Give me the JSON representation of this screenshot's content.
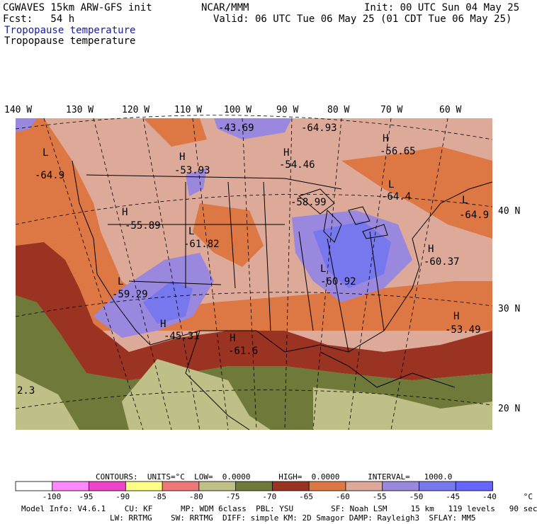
{
  "header": {
    "model": "CGWAVES 15km ARW-GFS init",
    "fcst": "Fcst:   54 h",
    "org": "NCAR/MMM",
    "init": "Init: 00 UTC Sun 04 May 25",
    "valid": "Valid: 06 UTC Tue 06 May 25 (01 CDT Tue 06 May 25)",
    "field1": "Tropopause temperature",
    "field2": "Tropopause temperature"
  },
  "longitudes": [
    "140 W",
    "130 W",
    "120 W",
    "110 W",
    "100 W",
    "90 W",
    "80 W",
    "70 W",
    "60 W"
  ],
  "latitudes": [
    "40 N",
    "30 N",
    "20 N"
  ],
  "extrema": [
    {
      "type": "L",
      "value": "-64.9"
    },
    {
      "type": "H",
      "value": "-53.93"
    },
    {
      "type": "H",
      "value": "-54.46"
    },
    {
      "type": "H",
      "value": "-56.65"
    },
    {
      "type": "L",
      "value": "-64.4"
    },
    {
      "type": "L",
      "value": "-64.9"
    },
    {
      "type": "H",
      "value": "-55.89"
    },
    {
      "type": "L",
      "value": "-61.82"
    },
    {
      "type": "L",
      "value": "-60.92"
    },
    {
      "type": "H",
      "value": "-60.37"
    },
    {
      "type": "L",
      "value": "-59.29"
    },
    {
      "type": "H",
      "value": "-45.31"
    },
    {
      "type": "H",
      "value": "-61.6"
    },
    {
      "type": "H",
      "value": "-53.49"
    },
    {
      "type": "",
      "value": "-43.69"
    },
    {
      "type": "",
      "value": "-64.93"
    },
    {
      "type": "",
      "value": "-58.99"
    },
    {
      "type": "",
      "value": "2.3"
    }
  ],
  "contours_line": "CONTOURS:  UNITS=°C  LOW=  0.0000      HIGH=  0.0000      INTERVAL=   1000.0",
  "colorbar": {
    "colors": [
      "#ffffff",
      "#ff88ff",
      "#ee44cc",
      "#ffff88",
      "#ee7777",
      "#bfbf88",
      "#6f7a3a",
      "#9a3322",
      "#dd7744",
      "#ddaa99",
      "#9988dd",
      "#7777ee",
      "#6666ff"
    ],
    "ticks": [
      "-100",
      "-95",
      "-90",
      "-85",
      "-80",
      "-75",
      "-70",
      "-65",
      "-60",
      "-55",
      "-50",
      "-45",
      "-40",
      "°C"
    ]
  },
  "footer": {
    "line1": "Model Info: V4.6.1    CU: KF      MP: WDM 6class  PBL: YSU        SF: Noah LSM     15 km   119 levels   90 sec",
    "line2": "LW: RRTMG    SW: RRTMG  DIFF: simple KM: 2D Smagor DAMP: Rayleigh3  SFLAY: MM5"
  }
}
